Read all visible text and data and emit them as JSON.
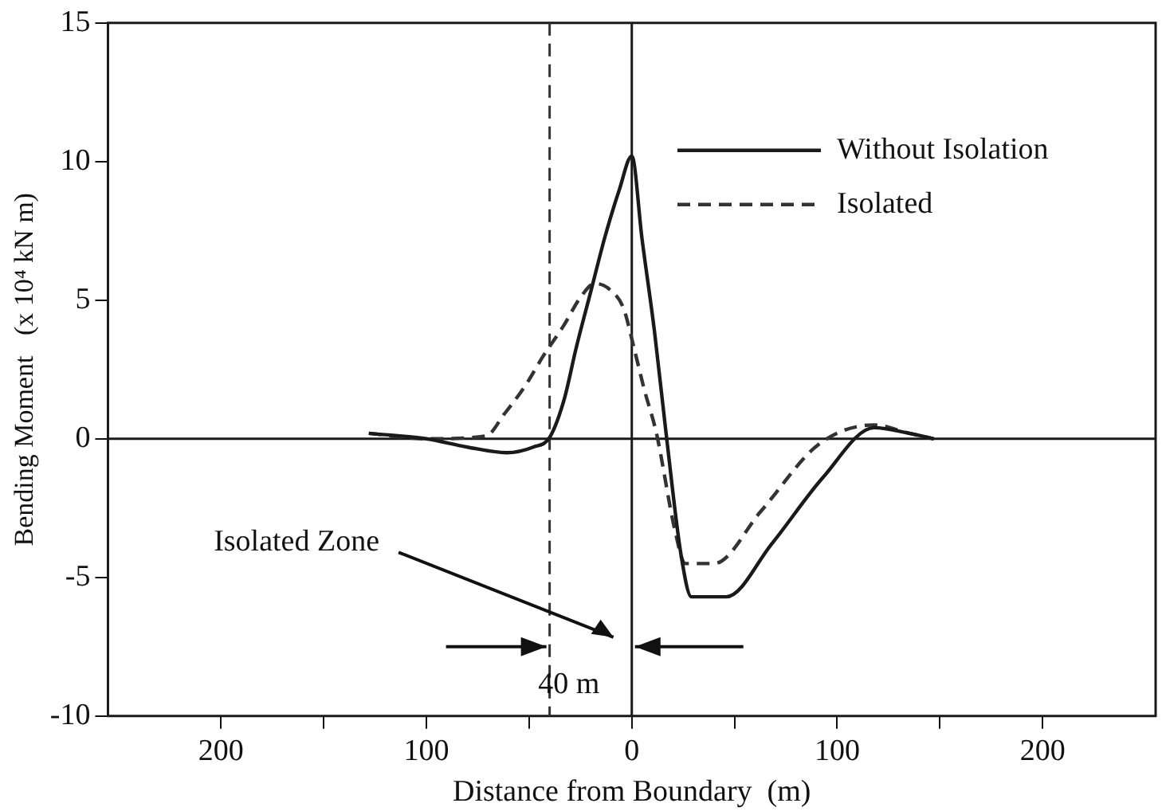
{
  "chart_data": {
    "type": "line",
    "xlabel": "Distance from Boundary  (m)",
    "ylabel": "Bending Moment   (x 10⁴ kN m)",
    "xlim": [
      -255,
      255
    ],
    "ylim": [
      -10,
      15
    ],
    "xticks": [
      {
        "value": -200,
        "label": "200"
      },
      {
        "value": -150,
        "label": null
      },
      {
        "value": -100,
        "label": "100"
      },
      {
        "value": -50,
        "label": null
      },
      {
        "value": 0,
        "label": "0"
      },
      {
        "value": 50,
        "label": null
      },
      {
        "value": 100,
        "label": "100"
      },
      {
        "value": 150,
        "label": null
      },
      {
        "value": 200,
        "label": "200"
      }
    ],
    "yticks": [
      -10,
      -5,
      0,
      5,
      10,
      15
    ],
    "grid": false,
    "legend": "top right",
    "marker": "none",
    "series": [
      {
        "name": "Without Isolation",
        "color": "#1a1a1a",
        "line_style": "solid",
        "x": [
          -128,
          -100,
          -80,
          -61,
          -48,
          -40,
          -33,
          -27,
          -20,
          -13,
          -6,
          0,
          5,
          11,
          17,
          24,
          29,
          46,
          68,
          93,
          118,
          135,
          147
        ],
        "values": [
          0.2,
          0.0,
          -0.3,
          -0.5,
          -0.3,
          0.05,
          1.4,
          3.3,
          5.3,
          7.3,
          9.0,
          10.2,
          7.2,
          3.9,
          0.0,
          -4.2,
          -5.7,
          -5.7,
          -3.8,
          -1.4,
          0.4,
          0.2,
          0.0
        ]
      },
      {
        "name": "Isolated",
        "color": "#333333",
        "line_style": "dashed",
        "x": [
          -128,
          -100,
          -71,
          -62,
          -52,
          -43,
          -33,
          -25,
          -18,
          -11,
          -4,
          1,
          6,
          12,
          21,
          26,
          40,
          63,
          91,
          118,
          135,
          147
        ],
        "values": [
          0.2,
          0.0,
          0.1,
          0.9,
          1.9,
          3.0,
          4.1,
          5.1,
          5.6,
          5.4,
          4.7,
          3.3,
          1.8,
          0.2,
          -3.3,
          -4.5,
          -4.5,
          -2.6,
          -0.2,
          0.5,
          0.2,
          0.0
        ]
      }
    ],
    "ref_lines": [
      {
        "axis": "y",
        "value": 0,
        "color": "#1a1a1a",
        "line_style": "solid"
      },
      {
        "axis": "x",
        "value": 0,
        "color": "#1a1a1a",
        "line_style": "solid"
      },
      {
        "axis": "x",
        "value": -40,
        "color": "#333333",
        "line_style": "dashed"
      }
    ],
    "annotations": [
      "Isolated Zone",
      "40 m"
    ]
  }
}
